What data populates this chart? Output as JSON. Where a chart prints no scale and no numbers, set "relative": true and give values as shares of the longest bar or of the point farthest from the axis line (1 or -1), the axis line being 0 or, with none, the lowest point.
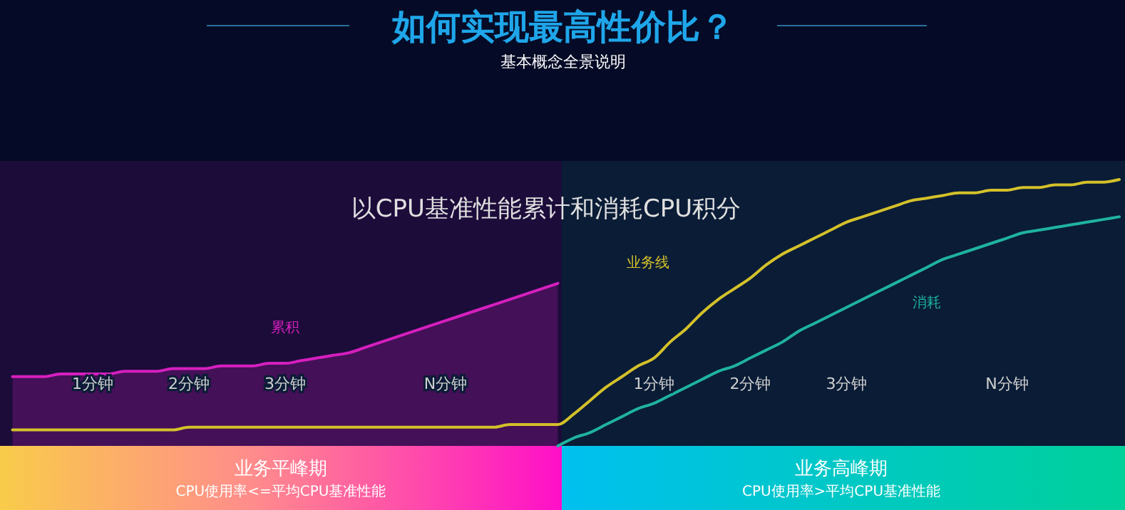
{
  "chart_data": {
    "type": "line",
    "title": "如何实现最高性价比？",
    "subtitle": "基本概念全景说明",
    "annotations": [
      "以CPU基准性能累计和消耗CPU积分",
      "业务平峰期",
      "CPU使用率<=平均CPU基准性能",
      "业务高峰期",
      "CPU使用率>平均CPU基准性能"
    ],
    "relative": true,
    "legend": false,
    "grid": false,
    "categories": [
      null,
      null,
      null,
      null,
      null,
      "1分钟",
      null,
      null,
      null,
      null,
      null,
      "2分钟",
      null,
      null,
      null,
      null,
      null,
      "3分钟",
      null,
      null,
      null,
      null,
      null,
      null,
      null,
      null,
      null,
      "N分钟",
      null,
      null,
      null,
      null,
      null,
      null,
      null,
      null,
      null,
      null,
      null,
      null,
      "1分钟",
      null,
      null,
      null,
      null,
      null,
      "2分钟",
      null,
      null,
      null,
      null,
      null,
      "3分钟",
      null,
      null,
      null,
      null,
      null,
      null,
      null,
      null,
      null,
      "N分钟",
      null,
      null,
      null,
      null,
      null,
      null,
      null
    ],
    "series": [
      {
        "name": "累积",
        "type": "area",
        "color": "#d61fbf",
        "values": [
          0.26,
          0.26,
          0.26,
          0.27,
          0.27,
          0.27,
          0.27,
          0.28,
          0.28,
          0.28,
          0.29,
          0.29,
          0.29,
          0.3,
          0.3,
          0.3,
          0.31,
          0.31,
          0.32,
          0.33,
          0.34,
          0.35,
          0.37,
          0.39,
          0.41,
          0.43,
          0.45,
          0.47,
          0.49,
          0.51,
          0.53,
          0.55,
          0.57,
          0.59,
          0.61,
          null,
          null,
          null,
          null,
          null,
          null,
          null,
          null,
          null,
          null,
          null,
          null,
          null,
          null,
          null,
          null,
          null,
          null,
          null,
          null,
          null,
          null,
          null,
          null,
          null,
          null,
          null,
          null,
          null,
          null,
          null,
          null,
          null,
          null,
          null
        ]
      },
      {
        "name": "业务线",
        "type": "line",
        "color": "#d4c12a",
        "values": [
          0.06,
          0.06,
          0.06,
          0.06,
          0.06,
          0.06,
          0.06,
          0.06,
          0.06,
          0.06,
          0.06,
          0.07,
          0.07,
          0.07,
          0.07,
          0.07,
          0.07,
          0.07,
          0.07,
          0.07,
          0.07,
          0.07,
          0.07,
          0.07,
          0.07,
          0.07,
          0.07,
          0.07,
          0.07,
          0.07,
          0.07,
          0.08,
          0.08,
          0.08,
          0.08,
          0.12,
          0.17,
          0.22,
          0.26,
          0.3,
          0.33,
          0.39,
          0.44,
          0.5,
          0.55,
          0.59,
          0.63,
          0.68,
          0.72,
          0.75,
          0.78,
          0.81,
          0.84,
          0.86,
          0.88,
          0.9,
          0.92,
          0.93,
          0.94,
          0.95,
          0.95,
          0.96,
          0.96,
          0.97,
          0.97,
          0.98,
          0.98,
          0.99,
          0.99,
          1
        ]
      },
      {
        "name": "消耗",
        "type": "line",
        "color": "#1fb3a0",
        "values": [
          null,
          null,
          null,
          null,
          null,
          null,
          null,
          null,
          null,
          null,
          null,
          null,
          null,
          null,
          null,
          null,
          null,
          null,
          null,
          null,
          null,
          null,
          null,
          null,
          null,
          null,
          null,
          null,
          null,
          null,
          null,
          null,
          null,
          null,
          0,
          0.03,
          0.05,
          0.08,
          0.11,
          0.14,
          0.16,
          0.19,
          0.22,
          0.25,
          0.28,
          0.3,
          0.33,
          0.36,
          0.39,
          0.43,
          0.46,
          0.49,
          0.52,
          0.55,
          0.58,
          0.61,
          0.64,
          0.67,
          0.7,
          0.72,
          0.74,
          0.76,
          0.78,
          0.8,
          0.81,
          0.82,
          0.83,
          0.84,
          0.85,
          0.86
        ]
      }
    ]
  }
}
